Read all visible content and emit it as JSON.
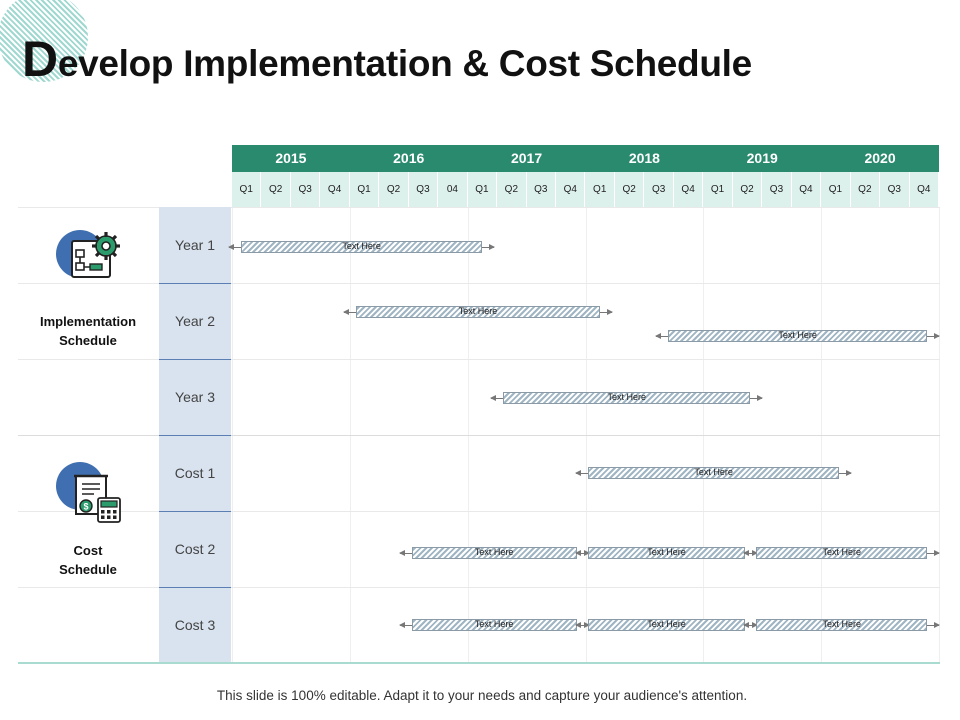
{
  "title": {
    "first_letter": "D",
    "rest": "evelop Implementation & Cost Schedule"
  },
  "years": [
    "2015",
    "2016",
    "2017",
    "2018",
    "2019",
    "2020"
  ],
  "quarters": [
    "Q1",
    "Q2",
    "Q3",
    "Q4",
    "Q1",
    "Q2",
    "Q3",
    "04",
    "Q1",
    "Q2",
    "Q3",
    "Q4",
    "Q1",
    "Q2",
    "Q3",
    "Q4",
    "Q1",
    "Q2",
    "Q3",
    "Q4",
    "Q1",
    "Q2",
    "Q3",
    "Q4"
  ],
  "groups": [
    {
      "label_line1": "Implementation",
      "label_line2": "Schedule",
      "icon": "gear-plan-icon"
    },
    {
      "label_line1": "Cost",
      "label_line2": "Schedule",
      "icon": "invoice-calculator-icon"
    }
  ],
  "rows": [
    "Year 1",
    "Year 2",
    "Year 3",
    "Cost 1",
    "Cost 2",
    "Cost 3"
  ],
  "bars": [
    {
      "row": 0,
      "start_q": 0.3,
      "end_q": 8.5,
      "text": "Text Here"
    },
    {
      "row": 1,
      "start_q": 4.2,
      "end_q": 12.5,
      "text": "Text Here"
    },
    {
      "row": 1,
      "start_q": 14.8,
      "end_q": 23.6,
      "text": "Text Here",
      "offset": 1
    },
    {
      "row": 2,
      "start_q": 9.2,
      "end_q": 17.6,
      "text": "Text Here"
    },
    {
      "row": 3,
      "start_q": 12.1,
      "end_q": 20.6,
      "text": "Text Here"
    },
    {
      "row": 4,
      "start_q": 6.1,
      "end_q": 11.7,
      "text": "Text Here"
    },
    {
      "row": 4,
      "start_q": 12.1,
      "end_q": 17.4,
      "text": "Text Here"
    },
    {
      "row": 4,
      "start_q": 17.8,
      "end_q": 23.6,
      "text": "Text Here"
    },
    {
      "row": 5,
      "start_q": 6.1,
      "end_q": 11.7,
      "text": "Text Here"
    },
    {
      "row": 5,
      "start_q": 12.1,
      "end_q": 17.4,
      "text": "Text Here"
    },
    {
      "row": 5,
      "start_q": 17.8,
      "end_q": 23.6,
      "text": "Text Here"
    }
  ],
  "colors": {
    "header": "#2a8a6e",
    "quarter_bg": "#ddf1ec",
    "label_bg": "#d9e3ef",
    "icon_circle": "#3f6fb0",
    "icon_green": "#2a9c6c"
  },
  "footer": "This slide is 100% editable. Adapt it to your needs and capture your audience's attention."
}
